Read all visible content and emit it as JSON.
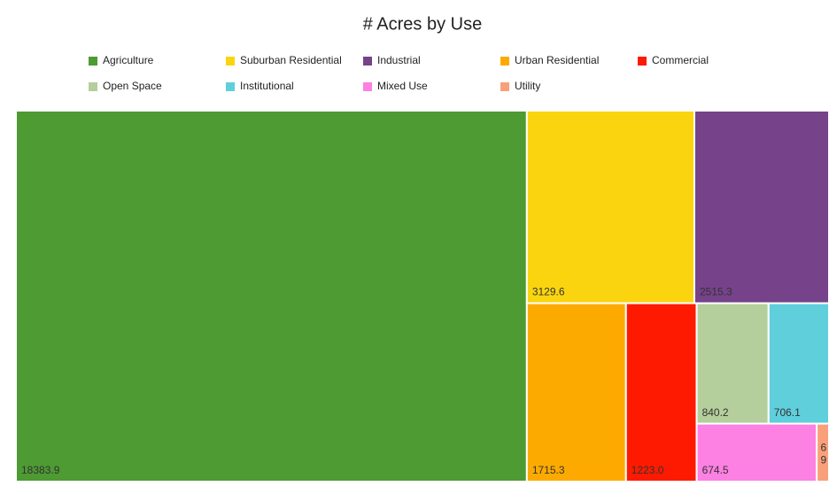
{
  "chart_data": {
    "type": "treemap",
    "title": "# Acres by Use",
    "categories": [
      "Agriculture",
      "Suburban Residential",
      "Industrial",
      "Urban Residential",
      "Commercial",
      "Open Space",
      "Institutional",
      "Mixed Use",
      "Utility"
    ],
    "values": [
      18383.9,
      3129.6,
      2515.3,
      1715.3,
      1223.0,
      840.2,
      706.1,
      674.5,
      69
    ],
    "value_labels": [
      "18383.9",
      "3129.6",
      "2515.3",
      "1715.3",
      "1223.0",
      "840.2",
      "706.1",
      "674.5",
      "69"
    ],
    "colors": [
      "#4e9a33",
      "#fad50f",
      "#76428a",
      "#fdaa00",
      "#fe1a00",
      "#b4cf9b",
      "#5fcfdc",
      "#fd80e3",
      "#f9a07a"
    ],
    "legend": "top"
  }
}
